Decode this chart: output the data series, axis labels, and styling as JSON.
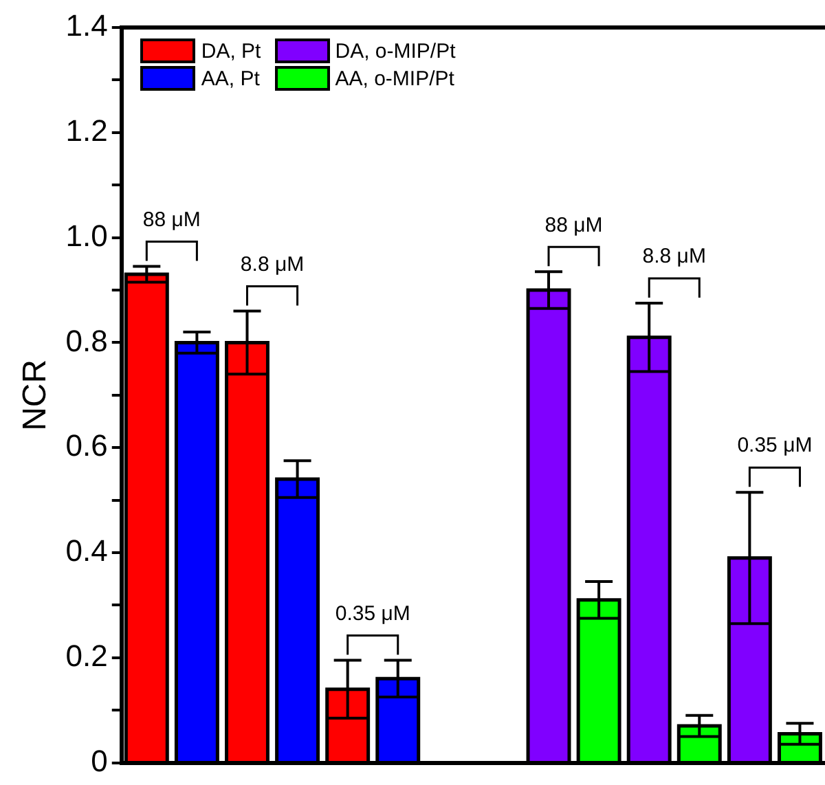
{
  "chart_data": {
    "type": "bar",
    "ylabel": "NCR",
    "categories": [
      null,
      null,
      null,
      null,
      null,
      null,
      null,
      null,
      null,
      null,
      null,
      null,
      null,
      null
    ],
    "series": [
      {
        "name": "DA, Pt",
        "color": "#ff0000",
        "values": [
          0.93,
          null,
          0.8,
          null,
          0.14,
          null,
          null,
          null,
          null,
          null,
          null,
          null,
          null,
          null
        ],
        "errors": [
          0.015,
          null,
          0.06,
          null,
          0.055,
          null,
          null,
          null,
          null,
          null,
          null,
          null,
          null,
          null
        ]
      },
      {
        "name": "AA, Pt",
        "color": "#0000ff",
        "values": [
          null,
          0.8,
          null,
          0.54,
          null,
          0.16,
          null,
          null,
          null,
          null,
          null,
          null,
          null,
          null
        ],
        "errors": [
          null,
          0.02,
          null,
          0.035,
          null,
          0.035,
          null,
          null,
          null,
          null,
          null,
          null,
          null,
          null
        ]
      },
      {
        "name": "DA, o-MIP/Pt",
        "color": "#8000ff",
        "values": [
          null,
          null,
          null,
          null,
          null,
          null,
          null,
          null,
          0.9,
          null,
          0.81,
          null,
          0.39,
          null
        ],
        "errors": [
          null,
          null,
          null,
          null,
          null,
          null,
          null,
          null,
          0.035,
          null,
          0.065,
          null,
          0.125,
          null
        ]
      },
      {
        "name": "AA, o-MIP/Pt",
        "color": "#00ff00",
        "values": [
          null,
          null,
          null,
          null,
          null,
          null,
          null,
          null,
          null,
          0.31,
          null,
          0.07,
          null,
          0.055
        ],
        "errors": [
          null,
          null,
          null,
          null,
          null,
          null,
          null,
          null,
          null,
          0.035,
          null,
          0.02,
          null,
          0.02
        ]
      }
    ],
    "ylim": [
      0,
      1.4
    ],
    "yticks": [
      0,
      {
        "value": 0.1,
        "label": null
      },
      {
        "value": 0.2,
        "label": "0.2"
      },
      {
        "value": 0.3,
        "label": null
      },
      {
        "value": 0.4,
        "label": "0.4"
      },
      {
        "value": 0.5,
        "label": null
      },
      {
        "value": 0.6,
        "label": "0.6"
      },
      {
        "value": 0.7,
        "label": null
      },
      {
        "value": 0.8,
        "label": "0.8"
      },
      {
        "value": 0.9,
        "label": null
      },
      {
        "value": 1.0,
        "label": "1.0"
      },
      {
        "value": 1.1,
        "label": null
      },
      {
        "value": 1.2,
        "label": "1.2"
      },
      {
        "value": 1.3,
        "label": null
      },
      {
        "value": 1.4,
        "label": "1.4"
      }
    ],
    "annotations": [
      "88 μM",
      "8.8 μM",
      "0.35 μM",
      "88 μM",
      "8.8 μM",
      "0.35 μM"
    ],
    "legend": "top left",
    "grid": false,
    "tick_labels": "y"
  }
}
